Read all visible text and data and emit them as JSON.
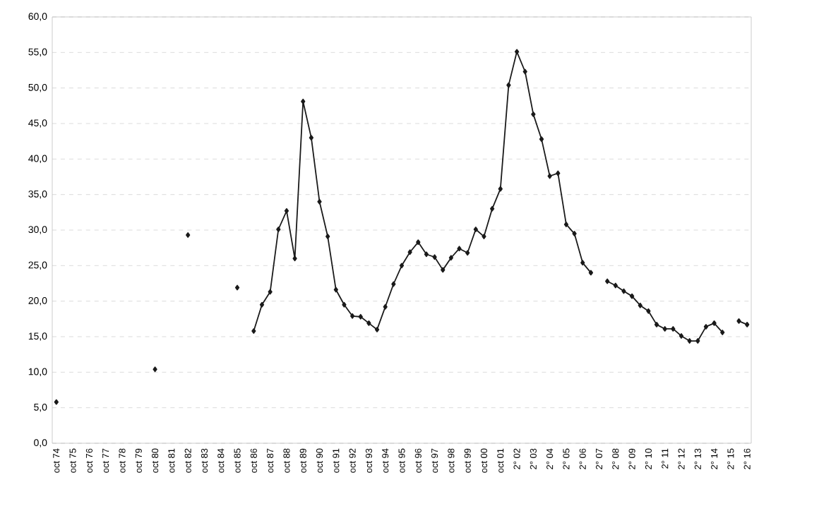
{
  "chart_data": {
    "type": "line",
    "categories": [
      "oct 74",
      null,
      "oct 75",
      null,
      "oct 76",
      null,
      "oct 77",
      null,
      "oct 78",
      null,
      "oct 79",
      null,
      "oct 80",
      null,
      "oct 81",
      null,
      "oct 82",
      null,
      "oct 83",
      null,
      "oct 84",
      null,
      "oct 85",
      null,
      "oct 86",
      null,
      "oct 87",
      null,
      "oct 88",
      null,
      "oct 89",
      null,
      "oct 90",
      null,
      "oct 91",
      null,
      "oct 92",
      null,
      "oct 93",
      null,
      "oct 94",
      null,
      "oct 95",
      null,
      "oct 96",
      null,
      "oct 97",
      null,
      "oct 98",
      null,
      "oct 99",
      null,
      "oct 00",
      null,
      "oct 01",
      null,
      "2° 02",
      null,
      "2° 03",
      null,
      "2° 04",
      null,
      "2° 05",
      null,
      "2° 06",
      null,
      "2° 07",
      null,
      "2° 08",
      null,
      "2° 09",
      null,
      "2° 10",
      null,
      "2° 11",
      null,
      "2° 12",
      null,
      "2° 13",
      null,
      "2° 14",
      null,
      "2° 15",
      null,
      "2° 16"
    ],
    "series": [
      {
        "color": "#1a1a1a",
        "values": [
          5.8,
          null,
          null,
          null,
          null,
          null,
          null,
          null,
          null,
          null,
          null,
          null,
          10.4,
          null,
          null,
          null,
          29.3,
          null,
          null,
          null,
          null,
          null,
          21.9,
          null,
          15.8,
          19.5,
          21.3,
          30.1,
          32.7,
          26.0,
          48.1,
          43.0,
          34.0,
          29.1,
          21.6,
          19.5,
          17.9,
          17.8,
          16.9,
          16.0,
          19.2,
          22.4,
          25.0,
          26.9,
          28.3,
          26.6,
          26.2,
          24.4,
          26.1,
          27.4,
          26.8,
          30.1,
          29.1,
          33.0,
          35.8,
          50.4,
          55.1,
          52.3,
          46.3,
          42.8,
          37.6,
          38.0,
          30.8,
          29.5,
          25.4,
          24.0,
          null,
          22.8,
          22.2,
          21.4,
          20.7,
          19.4,
          18.6,
          16.7,
          16.1,
          16.1,
          15.1,
          14.4,
          14.4,
          16.4,
          16.9,
          15.6,
          null,
          17.2,
          16.7
        ]
      }
    ],
    "ylim": [
      0,
      60
    ],
    "yticks": [
      {
        "value": 0,
        "label": "0,0"
      },
      {
        "value": 5,
        "label": "5,0"
      },
      {
        "value": 10,
        "label": "10,0"
      },
      {
        "value": 15,
        "label": "15,0"
      },
      {
        "value": 20,
        "label": "20,0"
      },
      {
        "value": 25,
        "label": "25,0"
      },
      {
        "value": 30,
        "label": "30,0"
      },
      {
        "value": 35,
        "label": "35,0"
      },
      {
        "value": 40,
        "label": "40,0"
      },
      {
        "value": 45,
        "label": "45,0"
      },
      {
        "value": 50,
        "label": "50,0"
      },
      {
        "value": 55,
        "label": "55,0"
      },
      {
        "value": 60,
        "label": "60,0"
      }
    ],
    "grid": "y",
    "marker": "diamond",
    "line_style": "solid"
  }
}
